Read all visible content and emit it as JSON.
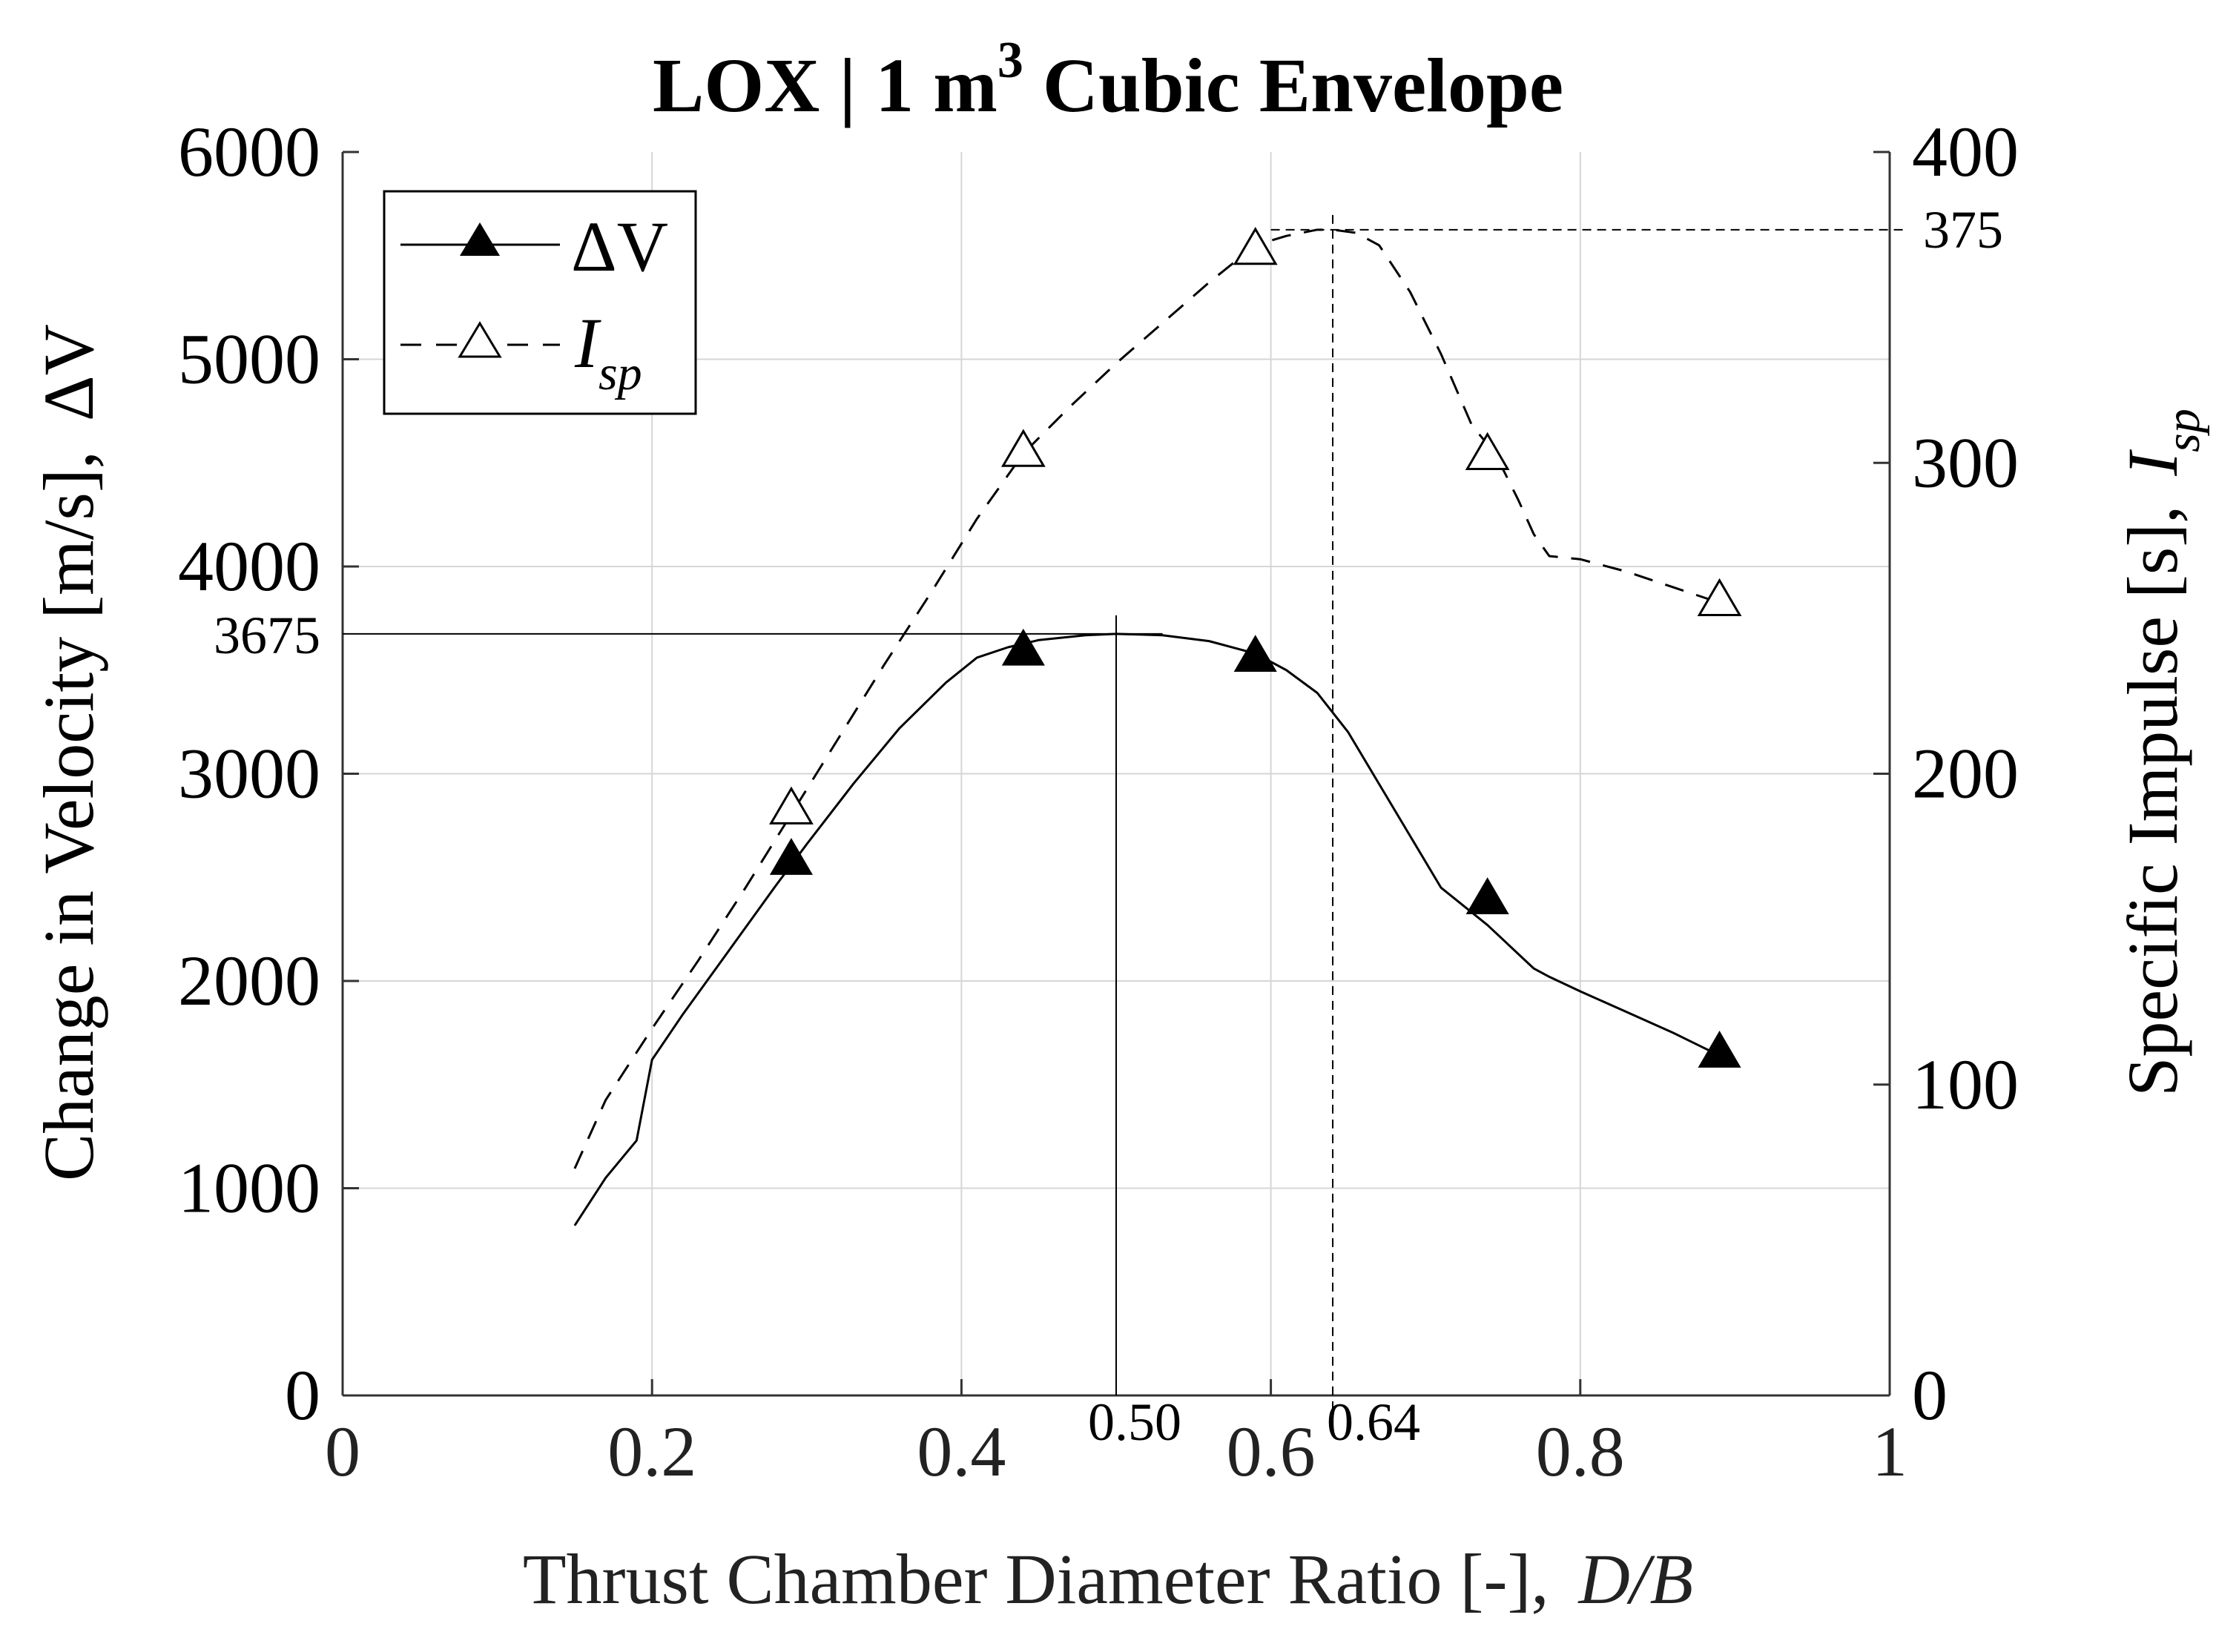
{
  "chart_data": {
    "type": "line",
    "title_main": "LOX | 1 m",
    "title_sup": "3",
    "title_tail": " Cubic Envelope",
    "xlabel": "Thrust Chamber Diameter Ratio [-],",
    "xlabel_var": "D/B",
    "ylabel_left": "Change in Velocity [m/s],",
    "ylabel_left_var": "ΔV",
    "ylabel_right": "Specific Impulse [s],",
    "ylabel_right_var_base": "I",
    "ylabel_right_var_sub": "sp",
    "xlim": [
      0,
      1
    ],
    "ylim_left": [
      0,
      6000
    ],
    "ylim_right": [
      0,
      400
    ],
    "x_ticks": [
      0,
      0.2,
      0.4,
      0.6,
      0.8,
      1
    ],
    "x_tick_labels": [
      "0",
      "0.2",
      "0.4",
      "0.6",
      "0.8",
      "1"
    ],
    "y_left_ticks": [
      0,
      1000,
      2000,
      3000,
      4000,
      5000,
      6000
    ],
    "y_left_tick_labels": [
      "0",
      "1000",
      "2000",
      "3000",
      "4000",
      "5000",
      "6000"
    ],
    "y_right_ticks": [
      0,
      100,
      200,
      300,
      400
    ],
    "y_right_tick_labels": [
      "0",
      "100",
      "200",
      "300",
      "400"
    ],
    "grid": true,
    "legend_position": "top-left",
    "series": [
      {
        "name": "ΔV",
        "axis": "left",
        "style": "solid",
        "marker": "filled-triangle",
        "x": [
          0.15,
          0.17,
          0.19,
          0.2,
          0.22,
          0.25,
          0.28,
          0.3,
          0.33,
          0.36,
          0.39,
          0.41,
          0.43,
          0.45,
          0.48,
          0.5,
          0.53,
          0.56,
          0.59,
          0.61,
          0.63,
          0.65,
          0.67,
          0.69,
          0.71,
          0.74,
          0.77,
          0.78,
          0.8,
          0.83,
          0.86,
          0.89
        ],
        "y": [
          820,
          1050,
          1230,
          1620,
          1840,
          2150,
          2460,
          2660,
          2950,
          3220,
          3440,
          3560,
          3610,
          3645,
          3668,
          3675,
          3668,
          3640,
          3580,
          3500,
          3390,
          3200,
          2950,
          2700,
          2450,
          2270,
          2060,
          2020,
          1950,
          1850,
          1750,
          1640
        ],
        "marker_x": [
          0.29,
          0.44,
          0.59,
          0.74,
          0.89
        ],
        "marker_y": [
          2590,
          3600,
          3570,
          2400,
          1660
        ]
      },
      {
        "name": "Isp",
        "axis": "right",
        "style": "dashed",
        "marker": "open-triangle",
        "x": [
          0.15,
          0.17,
          0.2,
          0.23,
          0.26,
          0.29,
          0.32,
          0.35,
          0.38,
          0.41,
          0.44,
          0.47,
          0.5,
          0.53,
          0.56,
          0.59,
          0.61,
          0.63,
          0.64,
          0.655,
          0.67,
          0.69,
          0.71,
          0.73,
          0.745,
          0.76,
          0.77,
          0.78,
          0.8,
          0.83,
          0.86,
          0.89
        ],
        "y": [
          73,
          95,
          118,
          140,
          163,
          187,
          211,
          235,
          258,
          282,
          303,
          318,
          332,
          345,
          358,
          370,
          373,
          375,
          375,
          374,
          370,
          355,
          335,
          312,
          303,
          288,
          277,
          270,
          269,
          265,
          260,
          255
        ],
        "marker_x": [
          0.29,
          0.44,
          0.59,
          0.74,
          0.89
        ],
        "marker_y": [
          189,
          304,
          369,
          303,
          256
        ]
      }
    ],
    "annotations": {
      "dv_peak_value": 3675,
      "dv_peak_label": "3675",
      "dv_peak_x": 0.5,
      "dv_peak_x_label": "0.50",
      "isp_peak_value": 375,
      "isp_peak_label": "375",
      "isp_peak_x": 0.64,
      "isp_peak_x_label": "0.64"
    },
    "legend": [
      {
        "label": "ΔV",
        "marker": "filled-triangle",
        "style": "solid"
      },
      {
        "label_base": "I",
        "label_sub": "sp",
        "marker": "open-triangle",
        "style": "dashed"
      }
    ]
  }
}
